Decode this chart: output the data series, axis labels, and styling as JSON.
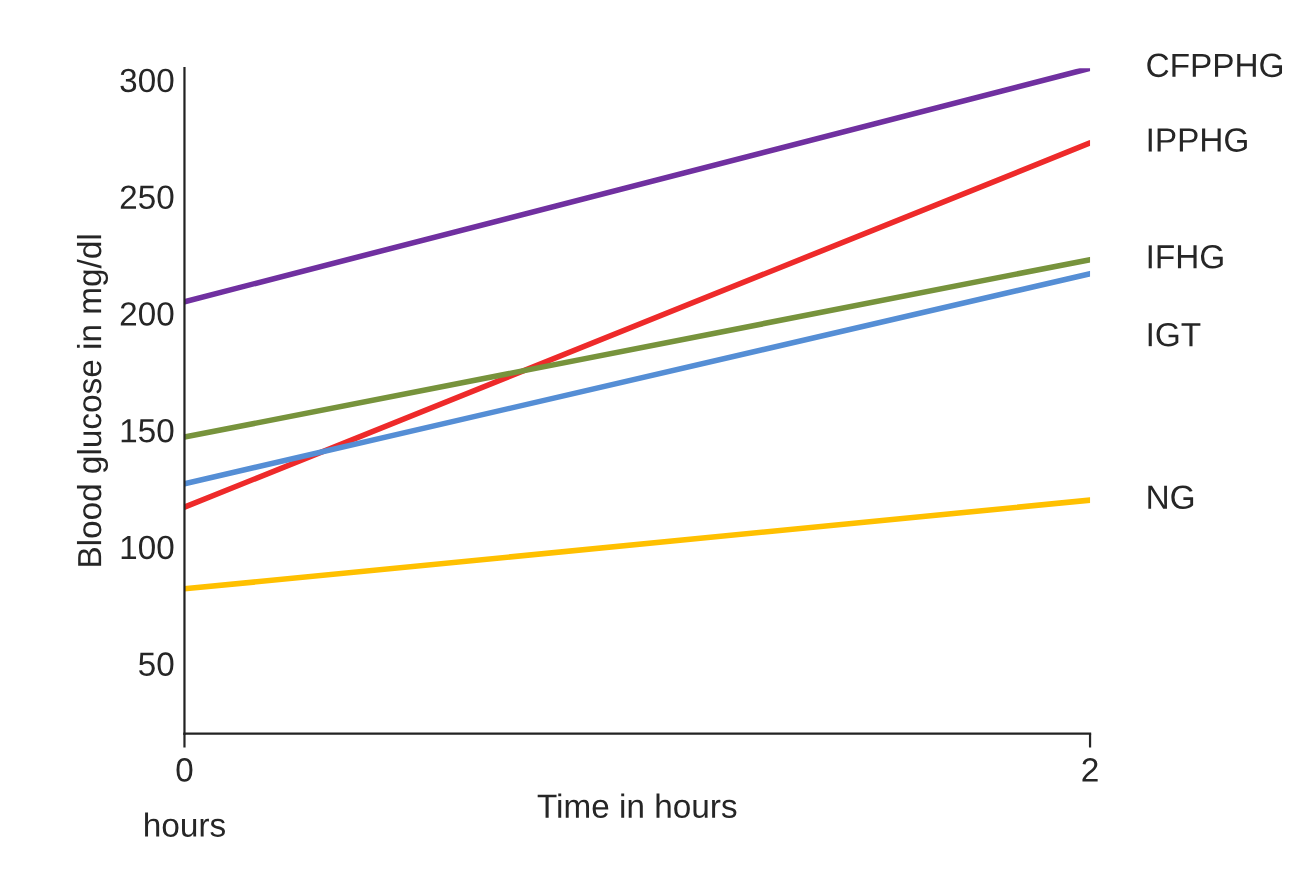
{
  "chart_data": {
    "type": "line",
    "xlabel": "Time in hours",
    "ylabel": "Blood glucose in mg/dl",
    "x": [
      0,
      2
    ],
    "xlim": [
      0,
      2
    ],
    "xticks": [
      {
        "value": 0,
        "label": "0\nhours"
      },
      2
    ],
    "ylim": [
      20,
      305
    ],
    "yticks": [
      50,
      100,
      150,
      200,
      250,
      300
    ],
    "grid": false,
    "legend": false,
    "marker": "none",
    "line_style": "solid",
    "series": [
      {
        "name": "CFPPHG",
        "color": "#7030a0",
        "values": [
          205,
          305
        ]
      },
      {
        "name": "IPPHG",
        "color": "#ee2a2a",
        "values": [
          117,
          273
        ]
      },
      {
        "name": "IFHG",
        "color": "#77933c",
        "values": [
          147,
          223
        ]
      },
      {
        "name": "IGT",
        "color": "#558ed5",
        "values": [
          127,
          217
        ]
      },
      {
        "name": "NG",
        "color": "#ffc000",
        "values": [
          82,
          120
        ]
      }
    ]
  }
}
